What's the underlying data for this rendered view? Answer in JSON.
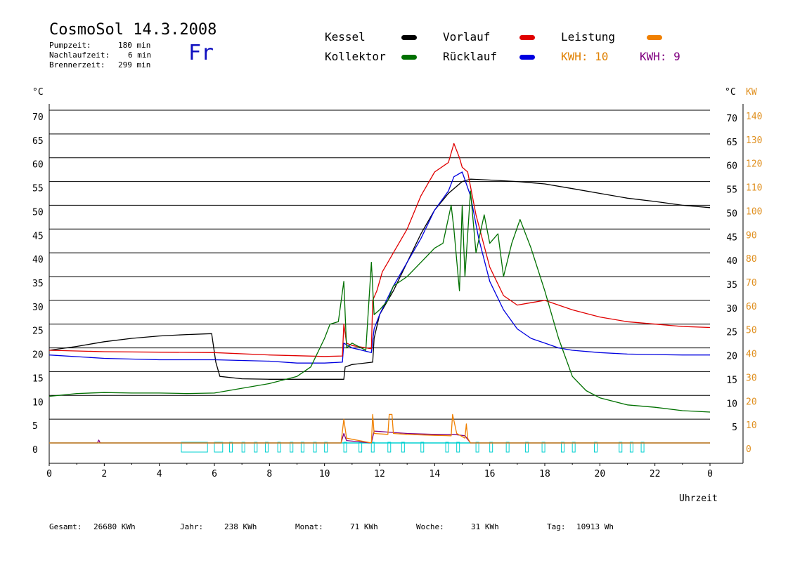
{
  "header": {
    "title": "CosmoSol 14.3.2008",
    "pump_label": "Pumpzeit:",
    "pump_value": "180 min",
    "nachlauf_label": "Nachlaufzeit:",
    "nachlauf_value": "6 min",
    "brenner_label": "Brennerzeit:",
    "brenner_value": "299 min",
    "weekday": "Fr"
  },
  "legend": {
    "kessel": "Kessel",
    "kollektor": "Kollektor",
    "vorlauf": "Vorlauf",
    "ruecklauf": "Rücklauf",
    "leistung": "Leistung",
    "kwh1": "KWH: 10",
    "kwh2": "KWH: 9"
  },
  "colors": {
    "kessel": "#000000",
    "kollektor": "#007000",
    "vorlauf": "#e00000",
    "ruecklauf": "#0000e0",
    "leistung": "#f08000",
    "kwh1": "#e08000",
    "kwh2": "#800080",
    "pump": "#00d0d0",
    "right_axis": "#e09020"
  },
  "footer": {
    "gesamt_label": "Gesamt:",
    "gesamt_value": "26680 KWh",
    "jahr_label": "Jahr:",
    "jahr_value": "238 KWh",
    "monat_label": "Monat:",
    "monat_value": "71 KWh",
    "woche_label": "Woche:",
    "woche_value": "31 KWh",
    "tag_label": "Tag:",
    "tag_value": "10913 Wh"
  },
  "chart_data": {
    "type": "line",
    "xlabel": "Uhrzeit",
    "ylabel_left": "°C",
    "ylabel_right_c": "°C",
    "ylabel_right_kw": "KW",
    "xlim": [
      0,
      24
    ],
    "ylim": [
      0,
      70
    ],
    "ylim_right_kw": [
      0,
      140
    ],
    "x_ticks": [
      "0",
      "2",
      "4",
      "6",
      "8",
      "10",
      "12",
      "14",
      "16",
      "18",
      "20",
      "22",
      "0"
    ],
    "y_ticks_left": [
      "0",
      "5",
      "10",
      "15",
      "20",
      "25",
      "30",
      "35",
      "40",
      "45",
      "50",
      "55",
      "60",
      "65",
      "70"
    ],
    "y_ticks_right_c": [
      "5",
      "10",
      "15",
      "20",
      "25",
      "30",
      "35",
      "40",
      "45",
      "50",
      "55",
      "60",
      "65",
      "70"
    ],
    "y_ticks_right_kw": [
      "0",
      "10",
      "20",
      "30",
      "40",
      "50",
      "60",
      "70",
      "80",
      "90",
      "100",
      "110",
      "120",
      "130",
      "140"
    ],
    "grid": "horizontal",
    "series": [
      {
        "name": "Kessel",
        "key": "kessel",
        "x": [
          0,
          1,
          2,
          3,
          4,
          5,
          5.9,
          6.05,
          6.2,
          7,
          8,
          9,
          10,
          10.7,
          10.75,
          11,
          11.75,
          11.8,
          12,
          12.5,
          13,
          13.5,
          14,
          14.5,
          15,
          15.3,
          16,
          17,
          18,
          19,
          20,
          21,
          22,
          23,
          24
        ],
        "y": [
          19.5,
          20.3,
          21.3,
          22,
          22.5,
          22.8,
          23,
          17,
          14,
          13.5,
          13.4,
          13.4,
          13.4,
          13.4,
          16,
          16.5,
          17,
          22,
          27,
          32,
          38,
          44,
          49,
          52.5,
          55,
          55.5,
          55.3,
          55,
          54.5,
          53.5,
          52.5,
          51.5,
          50.8,
          50,
          49.5
        ]
      },
      {
        "name": "Vorlauf",
        "key": "vorlauf",
        "x": [
          0,
          2,
          4,
          6,
          8,
          10,
          10.65,
          10.7,
          10.8,
          11,
          11.7,
          11.75,
          11.9,
          12.1,
          12.3,
          12.5,
          13,
          13.5,
          14,
          14.5,
          14.7,
          14.9,
          15,
          15.2,
          15.5,
          16,
          16.5,
          17,
          17.5,
          18,
          18.5,
          19,
          20,
          21,
          22,
          23,
          24
        ],
        "y": [
          19.5,
          19.2,
          19.1,
          19,
          18.5,
          18.2,
          18.3,
          25,
          21,
          20.5,
          19.8,
          30,
          32,
          36,
          38,
          40,
          45,
          52,
          57,
          59,
          63,
          60,
          58,
          57,
          48,
          37,
          31,
          29,
          29.5,
          30,
          29,
          28,
          26.5,
          25.5,
          25,
          24.5,
          24.3
        ]
      },
      {
        "name": "Rücklauf",
        "key": "ruecklauf",
        "x": [
          0,
          2,
          4,
          6,
          8,
          9,
          10,
          10.65,
          10.7,
          11,
          11.7,
          11.8,
          12,
          12.5,
          13,
          13.5,
          14,
          14.5,
          14.7,
          15,
          15.3,
          15.6,
          16,
          16.5,
          17,
          17.5,
          18,
          18.5,
          19,
          20,
          21,
          22,
          23,
          24
        ],
        "y": [
          18.5,
          17.8,
          17.5,
          17.5,
          17.2,
          16.8,
          16.8,
          17,
          21,
          20,
          19,
          24,
          27,
          33,
          38,
          43,
          49,
          53,
          56,
          57,
          52,
          43,
          34,
          28,
          24,
          22,
          21,
          20,
          19.5,
          19,
          18.7,
          18.6,
          18.5,
          18.5
        ]
      },
      {
        "name": "Kollektor",
        "key": "kollektor",
        "x": [
          0,
          1,
          2,
          3,
          4,
          5,
          6,
          7,
          8,
          9,
          9.5,
          10,
          10.2,
          10.5,
          10.7,
          10.8,
          11,
          11.5,
          11.7,
          11.8,
          12,
          12.3,
          12.5,
          13,
          13.5,
          14,
          14.3,
          14.6,
          14.7,
          14.9,
          15,
          15.1,
          15.3,
          15.5,
          15.8,
          16,
          16.3,
          16.5,
          16.8,
          17.1,
          17.5,
          18,
          18.5,
          19,
          19.5,
          20,
          21,
          22,
          23,
          24
        ],
        "y": [
          9.8,
          10.4,
          10.6,
          10.5,
          10.5,
          10.4,
          10.5,
          11.5,
          12.5,
          14,
          16,
          22,
          25,
          25.5,
          34,
          20,
          21,
          19.5,
          38,
          27,
          28,
          30,
          33,
          35,
          38,
          41,
          42,
          50,
          45,
          32,
          50,
          35,
          53,
          40,
          48,
          42,
          44,
          35,
          42,
          47,
          41,
          32,
          22,
          14,
          11,
          9.5,
          8,
          7.5,
          6.8,
          6.5
        ]
      },
      {
        "name": "Leistung",
        "key": "leistung",
        "x": [
          0,
          10.6,
          10.7,
          10.8,
          11.7,
          11.75,
          11.8,
          12.3,
          12.35,
          12.45,
          12.5,
          13,
          14,
          14.6,
          14.65,
          14.8,
          15.1,
          15.15,
          15.2,
          15.3,
          24
        ],
        "y": [
          0,
          0,
          5,
          1,
          0,
          6,
          2,
          1.8,
          6,
          6,
          2,
          1.8,
          1.6,
          1.5,
          6,
          2,
          1,
          4,
          1,
          0,
          0
        ]
      },
      {
        "name": "KWH: 9",
        "key": "kwh2",
        "x": [
          0,
          1.75,
          1.8,
          1.85,
          10.6,
          10.7,
          10.8,
          11.7,
          11.8,
          12,
          12.5,
          13,
          14,
          14.7,
          15.1,
          15.3,
          24
        ],
        "y": [
          0,
          0,
          0.6,
          0,
          0,
          2,
          0.5,
          0,
          2.5,
          2.4,
          2.2,
          2,
          1.8,
          1.8,
          1.5,
          0,
          0
        ]
      }
    ],
    "pump_on_intervals": [
      [
        4.8,
        5.75
      ],
      [
        6.0,
        6.3
      ],
      [
        6.55,
        6.65
      ],
      [
        7.0,
        7.1
      ],
      [
        7.45,
        7.55
      ],
      [
        7.85,
        7.95
      ],
      [
        8.3,
        8.4
      ],
      [
        8.75,
        8.85
      ],
      [
        9.15,
        9.25
      ],
      [
        9.6,
        9.7
      ],
      [
        10.0,
        10.1
      ],
      [
        10.7,
        10.8
      ],
      [
        11.25,
        11.35
      ],
      [
        11.7,
        11.8
      ],
      [
        12.3,
        12.4
      ],
      [
        12.8,
        12.9
      ],
      [
        13.5,
        13.6
      ],
      [
        14.4,
        14.5
      ],
      [
        14.8,
        14.9
      ],
      [
        15.5,
        15.6
      ],
      [
        16.0,
        16.1
      ],
      [
        16.6,
        16.7
      ],
      [
        17.3,
        17.4
      ],
      [
        17.9,
        18.0
      ],
      [
        18.6,
        18.7
      ],
      [
        19.0,
        19.1
      ],
      [
        19.8,
        19.9
      ],
      [
        20.7,
        20.8
      ],
      [
        21.1,
        21.2
      ],
      [
        21.5,
        21.6
      ]
    ]
  }
}
